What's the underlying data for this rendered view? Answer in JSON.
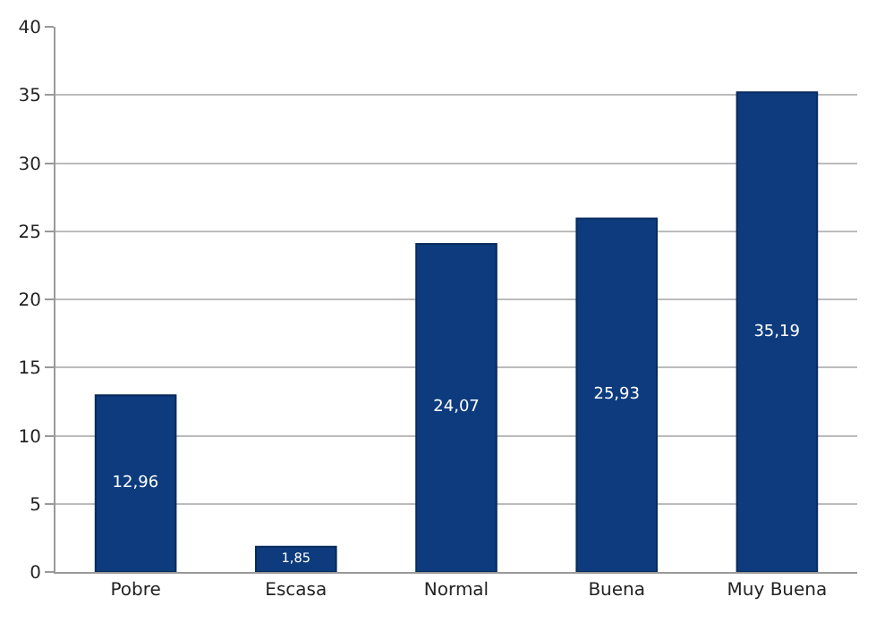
{
  "chart_data": {
    "type": "bar",
    "categories": [
      "Pobre",
      "Escasa",
      "Normal",
      "Buena",
      "Muy Buena"
    ],
    "values": [
      12.96,
      1.85,
      24.07,
      25.93,
      35.19
    ],
    "value_labels": [
      "12,96",
      "1,85",
      "24,07",
      "25,93",
      "35,19"
    ],
    "color": "#0d3b7e",
    "ylim": [
      0,
      40
    ],
    "yticks": [
      0,
      5,
      10,
      15,
      20,
      25,
      30,
      35,
      40
    ],
    "grid": "y",
    "legend": false
  }
}
